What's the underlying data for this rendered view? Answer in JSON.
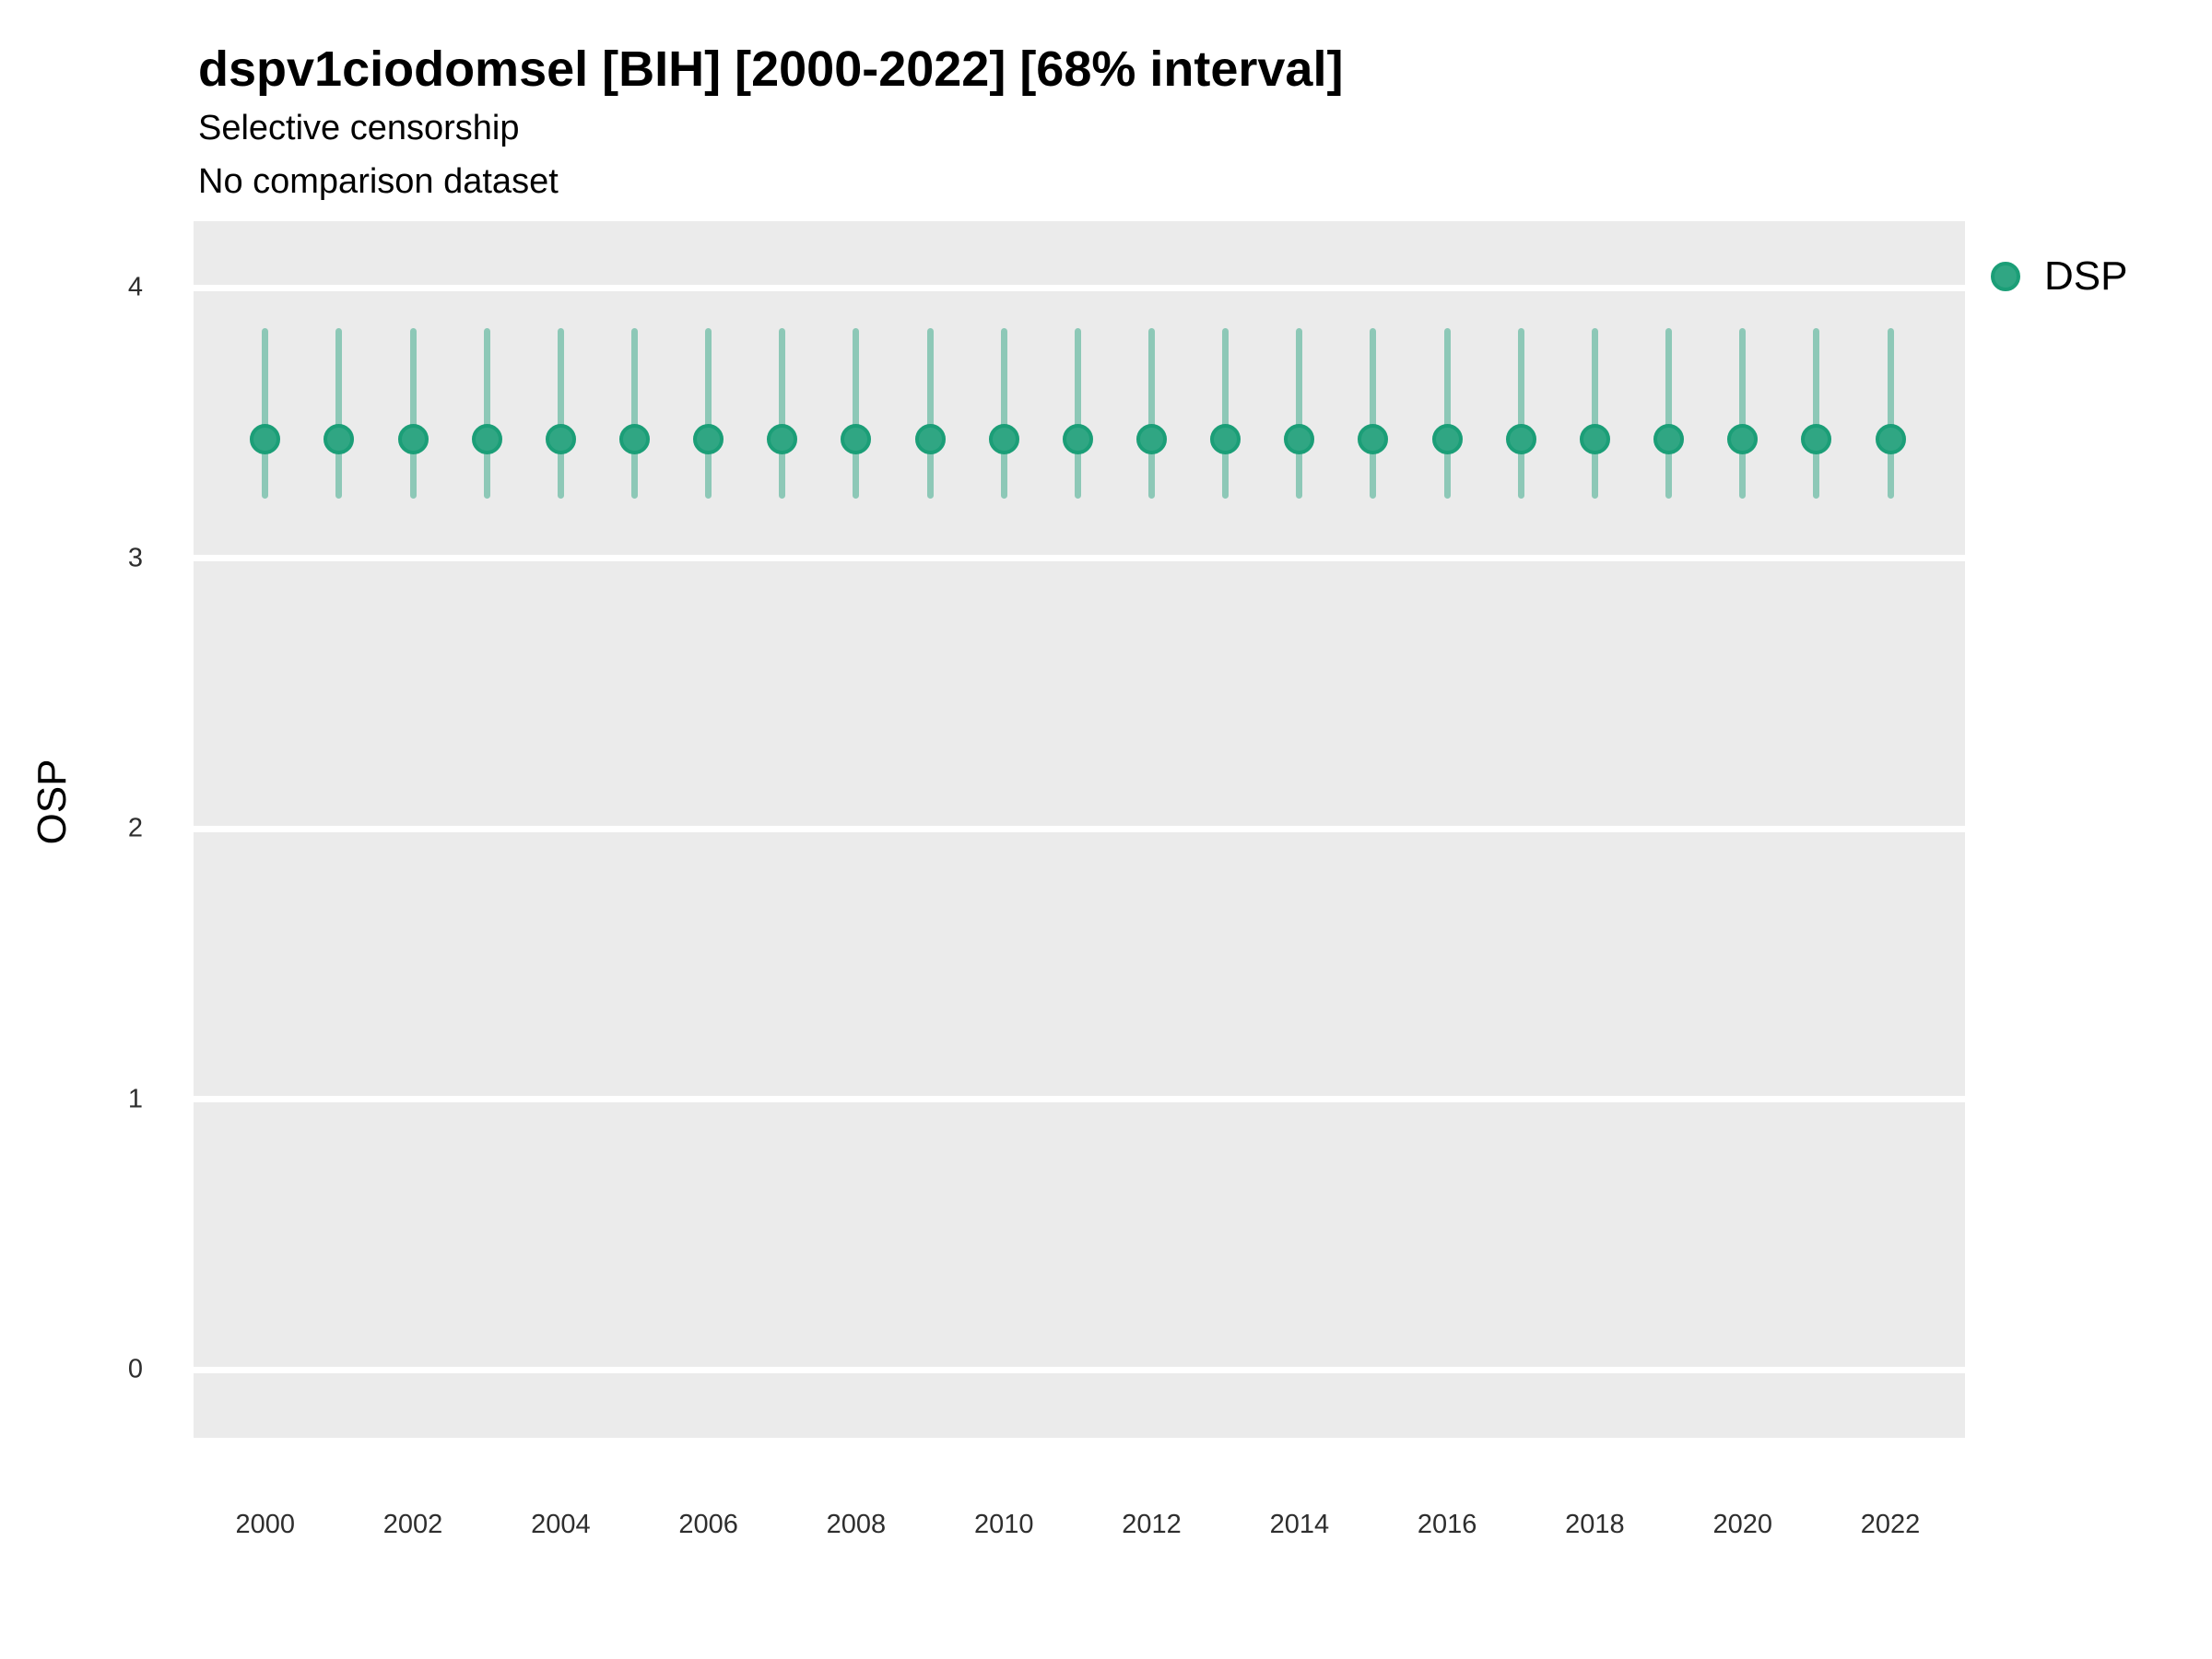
{
  "chart": {
    "title": "dspv1ciodomsel [BIH] [2000-2022] [68% interval]",
    "subtitle_line1": "Selective censorship",
    "subtitle_line2": "No comparison dataset",
    "ylabel": "OSP",
    "legend": {
      "items": [
        {
          "label": "DSP",
          "color": "#1b9e77"
        }
      ]
    }
  },
  "colors": {
    "background": "#ffffff",
    "panel_background": "#ebebeb",
    "gridline": "#ffffff",
    "tick_text": "#2e2e2e",
    "errorbar": "#8dc8b7",
    "point_fill": "#30a683",
    "point_border": "#1b9e77"
  },
  "chart_data": {
    "type": "scatter",
    "title": "dspv1ciodomsel [BIH] [2000-2022] [68% interval]",
    "subtitle": "Selective censorship / No comparison dataset",
    "xlabel": "",
    "ylabel": "OSP",
    "interval": "68%",
    "grid": "horizontal major gridlines only, white on gray panel",
    "legend_position": "right-top",
    "x": [
      2000,
      2001,
      2002,
      2003,
      2004,
      2005,
      2006,
      2007,
      2008,
      2009,
      2010,
      2011,
      2012,
      2013,
      2014,
      2015,
      2016,
      2017,
      2018,
      2019,
      2020,
      2021,
      2022
    ],
    "x_tick_labels": [
      "2000",
      "2002",
      "2004",
      "2006",
      "2008",
      "2010",
      "2012",
      "2014",
      "2016",
      "2018",
      "2020",
      "2022"
    ],
    "y_ticks": [
      0,
      1,
      2,
      3,
      4
    ],
    "y_tick_labels": [
      "0",
      "1",
      "2",
      "3",
      "4"
    ],
    "ylim": [
      -0.25,
      4.25
    ],
    "series": [
      {
        "name": "DSP",
        "values": [
          3.44,
          3.44,
          3.44,
          3.44,
          3.44,
          3.44,
          3.44,
          3.44,
          3.44,
          3.44,
          3.44,
          3.44,
          3.44,
          3.44,
          3.44,
          3.44,
          3.44,
          3.44,
          3.44,
          3.44,
          3.44,
          3.44,
          3.44
        ],
        "lower": [
          3.22,
          3.22,
          3.22,
          3.22,
          3.22,
          3.22,
          3.22,
          3.22,
          3.22,
          3.22,
          3.22,
          3.22,
          3.22,
          3.22,
          3.22,
          3.22,
          3.22,
          3.22,
          3.22,
          3.22,
          3.22,
          3.22,
          3.22
        ],
        "upper": [
          3.85,
          3.85,
          3.85,
          3.85,
          3.85,
          3.85,
          3.85,
          3.85,
          3.85,
          3.85,
          3.85,
          3.85,
          3.85,
          3.85,
          3.85,
          3.85,
          3.85,
          3.85,
          3.85,
          3.85,
          3.85,
          3.85,
          3.85
        ]
      }
    ]
  }
}
